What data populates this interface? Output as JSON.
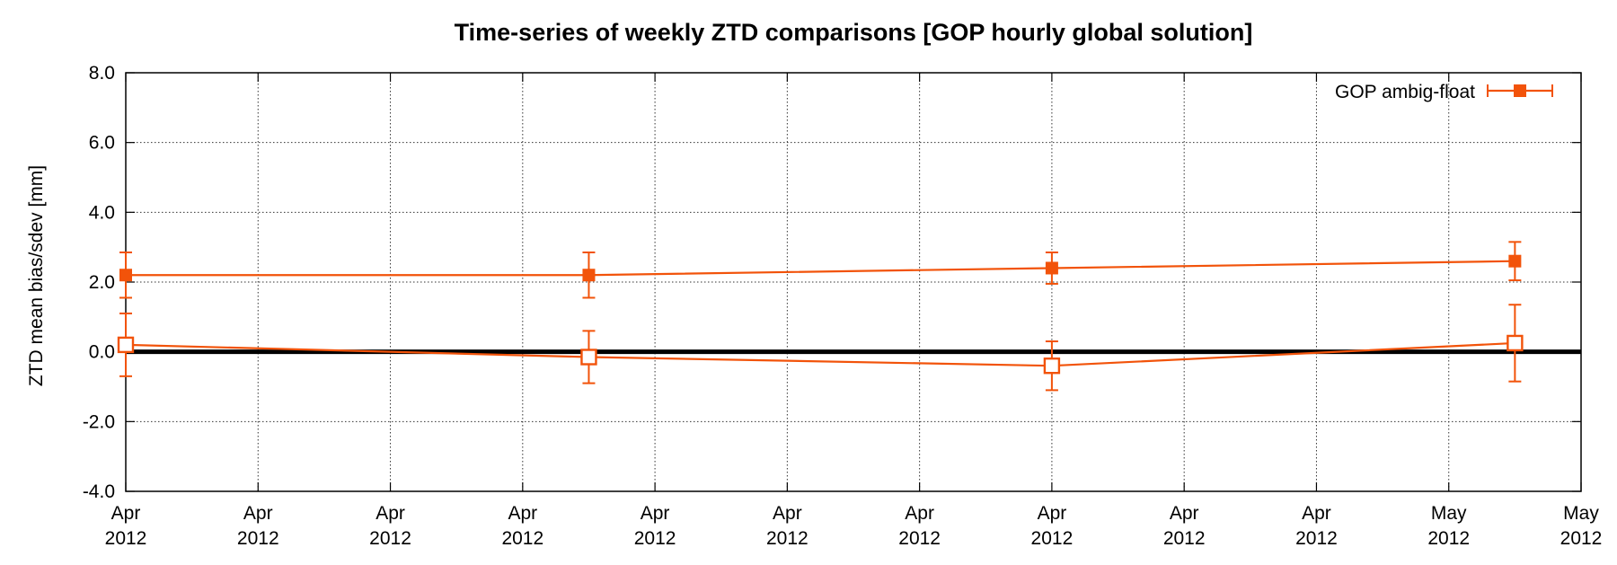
{
  "chart_data": {
    "type": "line",
    "title": "Time-series of weekly ZTD comparisons [GOP hourly global solution]",
    "ylabel": "ZTD mean bias/sdev [mm]",
    "xlabel": "",
    "ylim": [
      -4.0,
      8.0
    ],
    "y_ticks": [
      "-4.0",
      "-2.0",
      "0.0",
      "2.0",
      "4.0",
      "6.0",
      "8.0"
    ],
    "x_ticks": [
      {
        "month": "Apr",
        "year": "2012"
      },
      {
        "month": "Apr",
        "year": "2012"
      },
      {
        "month": "Apr",
        "year": "2012"
      },
      {
        "month": "Apr",
        "year": "2012"
      },
      {
        "month": "Apr",
        "year": "2012"
      },
      {
        "month": "Apr",
        "year": "2012"
      },
      {
        "month": "Apr",
        "year": "2012"
      },
      {
        "month": "Apr",
        "year": "2012"
      },
      {
        "month": "Apr",
        "year": "2012"
      },
      {
        "month": "Apr",
        "year": "2012"
      },
      {
        "month": "May",
        "year": "2012"
      },
      {
        "month": "May",
        "year": "2012"
      }
    ],
    "x": [
      0,
      3.5,
      7,
      10.5
    ],
    "x_note_tick_spacing": 1,
    "grid": true,
    "zero_line": true,
    "legend_position": "top-right",
    "color": "#F2530A",
    "series": [
      {
        "name": "GOP ambig-float",
        "marker": "filled-square",
        "y": [
          2.2,
          2.2,
          2.4,
          2.6
        ],
        "err": [
          0.65,
          0.65,
          0.45,
          0.55
        ]
      },
      {
        "marker": "open-square",
        "y": [
          0.2,
          -0.15,
          -0.4,
          0.25
        ],
        "err": [
          0.9,
          0.75,
          0.7,
          1.1
        ]
      }
    ]
  }
}
